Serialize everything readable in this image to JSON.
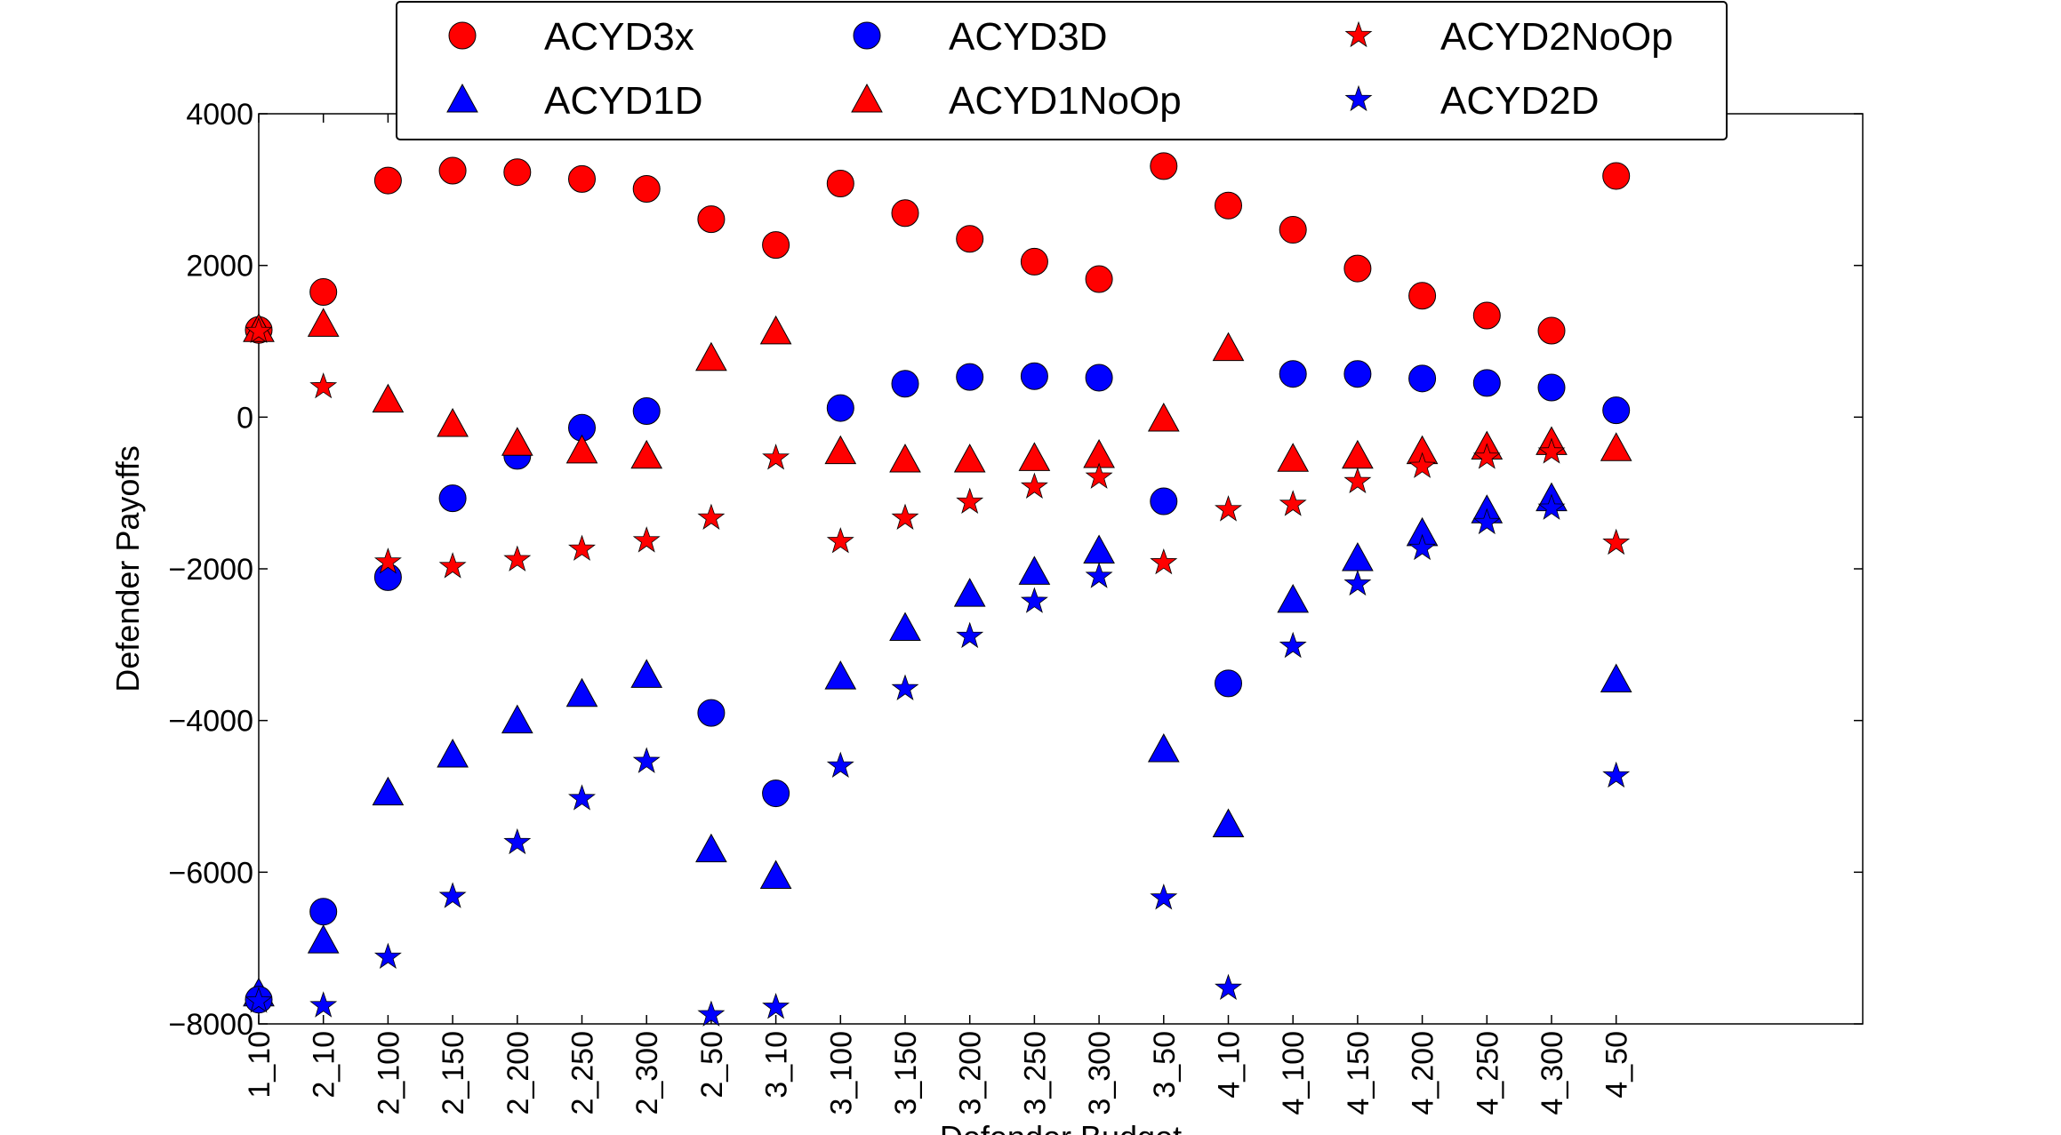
{
  "chart_data": {
    "type": "scatter",
    "title": "",
    "ylabel": "Defender Payoffs",
    "xlabel": "Defender Budget",
    "ylim": [
      -8000,
      4000
    ],
    "yticks": [
      4000,
      2000,
      0,
      -2000,
      -4000,
      -6000,
      -8000
    ],
    "ytick_labels": [
      "4000",
      "2000",
      "0",
      "−2000",
      "−4000",
      "−6000",
      "−8000"
    ],
    "categories": [
      "1_10",
      "2_10",
      "2_100",
      "2_150",
      "2_200",
      "2_250",
      "2_300",
      "2_50",
      "3_10",
      "3_100",
      "3_150",
      "3_200",
      "3_250",
      "3_300",
      "3_50",
      "4_10",
      "4_100",
      "4_150",
      "4_200",
      "4_250",
      "4_300",
      "4_50"
    ],
    "grid": false,
    "legend_position": "top-center",
    "colors": {
      "red": "#ff0000",
      "blue": "#0000ff"
    },
    "series": [
      {
        "name": "ACYD3x",
        "marker": "circle",
        "color": "#ff0000",
        "values": [
          1150,
          1650,
          3120,
          3250,
          3230,
          3140,
          3010,
          2610,
          2270,
          3080,
          2690,
          2350,
          2050,
          1820,
          3310,
          2790,
          2470,
          1960,
          1600,
          1340,
          1140,
          3180
        ]
      },
      {
        "name": "ACYD1D",
        "marker": "triangle",
        "color": "#0000ff",
        "values": [
          -7600,
          -6900,
          -4950,
          -4450,
          -4000,
          -3650,
          -3400,
          -5700,
          -6050,
          -3420,
          -2780,
          -2330,
          -2040,
          -1760,
          -4380,
          -5370,
          -2410,
          -1860,
          -1530,
          -1230,
          -1070,
          -3460
        ]
      },
      {
        "name": "ACYD3D",
        "marker": "circle",
        "color": "#0000ff",
        "values": [
          -7680,
          -6520,
          -2110,
          -1070,
          -510,
          -140,
          80,
          -3900,
          -4960,
          120,
          440,
          530,
          540,
          520,
          -1110,
          -3510,
          570,
          570,
          510,
          450,
          390,
          90
        ]
      },
      {
        "name": "ACYD1NoOp",
        "marker": "triangle",
        "color": "#ff0000",
        "values": [
          1160,
          1230,
          230,
          -90,
          -340,
          -440,
          -510,
          780,
          1130,
          -450,
          -560,
          -560,
          -540,
          -500,
          -20,
          910,
          -550,
          -510,
          -450,
          -390,
          -330,
          -410
        ]
      },
      {
        "name": "ACYD2NoOp",
        "marker": "star",
        "color": "#ff0000",
        "values": [
          1130,
          400,
          -1910,
          -1970,
          -1880,
          -1740,
          -1630,
          -1330,
          -540,
          -1640,
          -1330,
          -1120,
          -920,
          -790,
          -1920,
          -1220,
          -1150,
          -850,
          -650,
          -530,
          -460,
          -1660
        ]
      },
      {
        "name": "ACYD2D",
        "marker": "star",
        "color": "#0000ff",
        "values": [
          -7700,
          -7760,
          -7120,
          -6320,
          -5610,
          -5030,
          -4540,
          -7880,
          -7780,
          -4600,
          -3580,
          -2890,
          -2430,
          -2100,
          -6340,
          -7530,
          -3020,
          -2200,
          -1730,
          -1390,
          -1200,
          -4730
        ]
      }
    ]
  }
}
